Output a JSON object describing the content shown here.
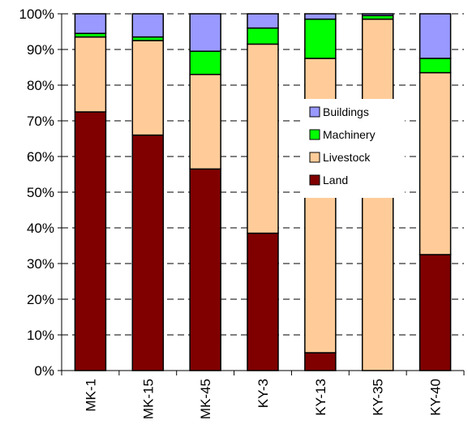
{
  "chart_data": {
    "type": "bar",
    "stacked": true,
    "percent": true,
    "title": "",
    "xlabel": "",
    "ylabel": "",
    "ylim": [
      0,
      100
    ],
    "y_ticks": [
      "0%",
      "10%",
      "20%",
      "30%",
      "40%",
      "50%",
      "60%",
      "70%",
      "80%",
      "90%",
      "100%"
    ],
    "grid": "horizontal dashed",
    "legend_position": "right-center",
    "categories": [
      "MK-1",
      "MK-15",
      "MK-45",
      "KY-3",
      "KY-13",
      "KY-35",
      "KY-40"
    ],
    "series": [
      {
        "name": "Land",
        "color": "#800000",
        "values": [
          72.5,
          66,
          56.5,
          38.5,
          5,
          0,
          32.5
        ]
      },
      {
        "name": "Livestock",
        "color": "#FFCC99",
        "values": [
          21,
          26.5,
          26.5,
          53,
          82.5,
          98.5,
          51
        ]
      },
      {
        "name": "Machinery",
        "color": "#00FF00",
        "values": [
          1,
          1,
          6.5,
          4.5,
          11,
          1,
          4
        ]
      },
      {
        "name": "Buildings",
        "color": "#9999FF",
        "values": [
          5.5,
          6.5,
          10.5,
          4,
          1.5,
          0.5,
          12.5
        ]
      }
    ],
    "legend_order": [
      "Buildings",
      "Machinery",
      "Livestock",
      "Land"
    ]
  }
}
